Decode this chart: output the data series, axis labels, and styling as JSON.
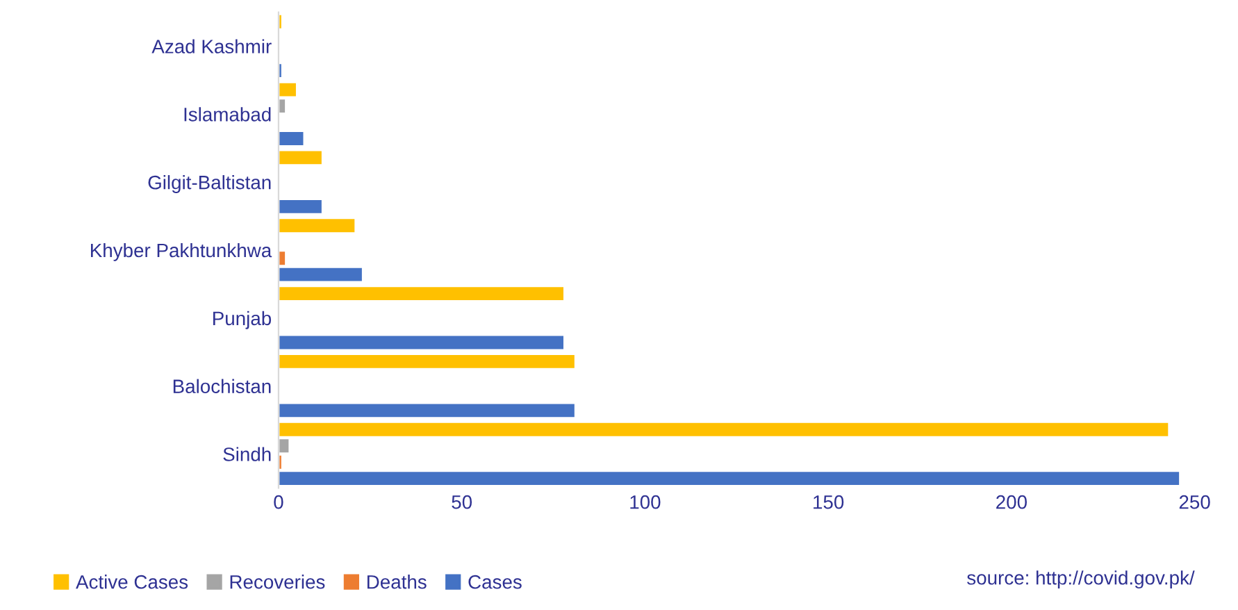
{
  "chart_data": {
    "type": "bar",
    "orientation": "horizontal",
    "categories": [
      "Azad Kashmir",
      "Islamabad",
      "Gilgit-Baltistan",
      "Khyber Pakhtunkhwa",
      "Punjab",
      "Balochistan",
      "Sindh"
    ],
    "series": [
      {
        "name": "Active Cases",
        "color": "#ffc000",
        "values": [
          1,
          5,
          12,
          21,
          78,
          81,
          243
        ]
      },
      {
        "name": "Recoveries",
        "color": "#a5a5a5",
        "values": [
          null,
          2,
          null,
          null,
          null,
          null,
          3
        ]
      },
      {
        "name": "Deaths",
        "color": "#ed7d31",
        "values": [
          null,
          null,
          null,
          2,
          null,
          null,
          1
        ]
      },
      {
        "name": "Cases",
        "color": "#4472c4",
        "values": [
          1,
          7,
          12,
          23,
          78,
          81,
          246
        ]
      }
    ],
    "xlim": [
      0,
      250
    ],
    "xticks": [
      0,
      50,
      100,
      150,
      200,
      250
    ],
    "grid": false,
    "legend": "bottom",
    "annotations": [
      "source: http://covid.gov.pk/"
    ]
  }
}
